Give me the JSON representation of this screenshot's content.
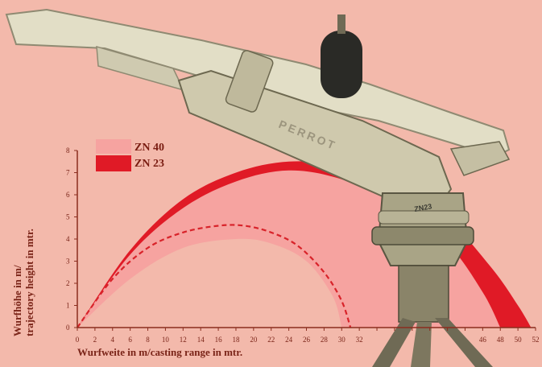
{
  "colors": {
    "background": "#f3b9ab",
    "zn40": "#f6a3a0",
    "zn23": "#e01a26",
    "dashed": "#d8232a",
    "axis": "#8b2d1e",
    "metal": "#d9d5bd"
  },
  "product": {
    "brand_text": "PERROT",
    "model_text": "ZN23"
  },
  "chart_data": {
    "type": "area",
    "xlabel": "Wurfweite in m/casting range in mtr.",
    "ylabel_line1": "Wurfhöhe in m/",
    "ylabel_line2": "trajectory height in mtr.",
    "xlim": [
      0,
      52
    ],
    "ylim": [
      0,
      8
    ],
    "x_ticks": [
      "0",
      "2",
      "4",
      "6",
      "8",
      "10",
      "12",
      "14",
      "16",
      "18",
      "20",
      "22",
      "24",
      "26",
      "28",
      "30",
      "32",
      "",
      "",
      "",
      "",
      "",
      "",
      "46",
      "48",
      "50",
      "52"
    ],
    "y_ticks": [
      "0",
      "1",
      "2",
      "3",
      "4",
      "5",
      "6",
      "7",
      "8"
    ],
    "legend_position": "top-left",
    "series": [
      {
        "name": "ZN 40",
        "style": "filled-band",
        "color_key": "zn40",
        "upper": [
          [
            0,
            0
          ],
          [
            6,
            3.5
          ],
          [
            12,
            5.8
          ],
          [
            18,
            7.0
          ],
          [
            24,
            7.5
          ],
          [
            30,
            7.3
          ],
          [
            36,
            6.4
          ],
          [
            42,
            4.9
          ],
          [
            47,
            2.7
          ],
          [
            50,
            1.0
          ],
          [
            51.5,
            0
          ]
        ],
        "lower": [
          [
            0,
            0
          ],
          [
            6,
            2.2
          ],
          [
            12,
            3.6
          ],
          [
            18,
            4.0
          ],
          [
            22,
            3.8
          ],
          [
            26,
            3.0
          ],
          [
            29,
            1.4
          ],
          [
            30,
            0
          ]
        ]
      },
      {
        "name": "ZN 23",
        "style": "filled-band",
        "color_key": "zn23",
        "upper": [
          [
            0,
            0
          ],
          [
            6,
            3.5
          ],
          [
            12,
            5.8
          ],
          [
            18,
            7.0
          ],
          [
            24,
            7.5
          ],
          [
            30,
            7.3
          ],
          [
            36,
            6.4
          ],
          [
            42,
            4.9
          ],
          [
            47,
            2.7
          ],
          [
            50,
            1.0
          ],
          [
            51.5,
            0
          ]
        ],
        "lower": [
          [
            0,
            0
          ],
          [
            6,
            3.3
          ],
          [
            12,
            5.4
          ],
          [
            18,
            6.6
          ],
          [
            24,
            7.1
          ],
          [
            30,
            6.7
          ],
          [
            36,
            5.6
          ],
          [
            42,
            3.8
          ],
          [
            46,
            1.6
          ],
          [
            48,
            0
          ]
        ]
      },
      {
        "name": "",
        "style": "dashed-line",
        "color_key": "dashed",
        "points": [
          [
            0,
            0
          ],
          [
            4,
            2.2
          ],
          [
            8,
            3.6
          ],
          [
            12,
            4.3
          ],
          [
            16,
            4.6
          ],
          [
            19,
            4.6
          ],
          [
            22,
            4.3
          ],
          [
            25,
            3.7
          ],
          [
            28,
            2.5
          ],
          [
            30,
            1.2
          ],
          [
            31,
            0
          ]
        ]
      }
    ],
    "legend": [
      "ZN 40",
      "ZN 23"
    ]
  }
}
